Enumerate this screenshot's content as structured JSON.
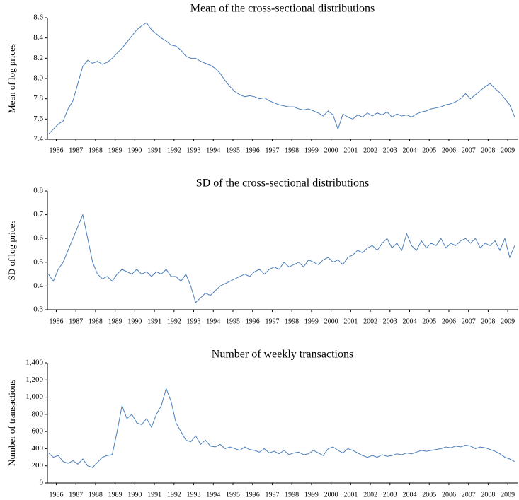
{
  "chart_data": [
    {
      "type": "line",
      "title": "Mean of the cross-sectional distributions",
      "y_label": "Mean of log prices",
      "color": "#4a7ebb",
      "x": [
        1985.6,
        1985.85,
        1986.1,
        1986.35,
        1986.6,
        1986.85,
        1987.1,
        1987.35,
        1987.6,
        1987.85,
        1988.1,
        1988.35,
        1988.6,
        1988.85,
        1989.1,
        1989.35,
        1989.6,
        1989.85,
        1990.1,
        1990.35,
        1990.6,
        1990.85,
        1991.1,
        1991.35,
        1991.6,
        1991.85,
        1992.1,
        1992.35,
        1992.6,
        1992.85,
        1993.1,
        1993.35,
        1993.6,
        1993.85,
        1994.1,
        1994.35,
        1994.6,
        1994.85,
        1995.1,
        1995.35,
        1995.6,
        1995.85,
        1996.1,
        1996.35,
        1996.6,
        1996.85,
        1997.1,
        1997.35,
        1997.6,
        1997.85,
        1998.1,
        1998.35,
        1998.6,
        1998.85,
        1999.1,
        1999.35,
        1999.6,
        1999.85,
        2000.1,
        2000.35,
        2000.6,
        2000.85,
        2001.1,
        2001.35,
        2001.6,
        2001.85,
        2002.1,
        2002.35,
        2002.6,
        2002.85,
        2003.1,
        2003.35,
        2003.6,
        2003.85,
        2004.1,
        2004.35,
        2004.6,
        2004.85,
        2005.1,
        2005.35,
        2005.6,
        2005.85,
        2006.1,
        2006.35,
        2006.6,
        2006.85,
        2007.1,
        2007.35,
        2007.6,
        2007.85,
        2008.1,
        2008.35,
        2008.6,
        2008.85,
        2009.1,
        2009.35
      ],
      "values": [
        7.45,
        7.5,
        7.55,
        7.58,
        7.7,
        7.78,
        7.95,
        8.12,
        8.18,
        8.15,
        8.17,
        8.14,
        8.16,
        8.2,
        8.25,
        8.3,
        8.36,
        8.42,
        8.48,
        8.52,
        8.55,
        8.48,
        8.44,
        8.4,
        8.37,
        8.33,
        8.32,
        8.28,
        8.22,
        8.2,
        8.2,
        8.17,
        8.15,
        8.13,
        8.1,
        8.05,
        7.98,
        7.92,
        7.87,
        7.84,
        7.82,
        7.83,
        7.82,
        7.8,
        7.81,
        7.78,
        7.76,
        7.74,
        7.73,
        7.72,
        7.72,
        7.7,
        7.69,
        7.7,
        7.68,
        7.66,
        7.63,
        7.68,
        7.64,
        7.5,
        7.65,
        7.62,
        7.6,
        7.64,
        7.62,
        7.66,
        7.63,
        7.66,
        7.64,
        7.67,
        7.62,
        7.65,
        7.63,
        7.64,
        7.62,
        7.65,
        7.67,
        7.68,
        7.7,
        7.71,
        7.72,
        7.74,
        7.75,
        7.77,
        7.8,
        7.85,
        7.8,
        7.84,
        7.88,
        7.92,
        7.95,
        7.9,
        7.86,
        7.8,
        7.74,
        7.62
      ],
      "xlim": [
        1985.55,
        2009.5
      ],
      "xticks": [
        1986,
        1987,
        1988,
        1989,
        1990,
        1991,
        1992,
        1993,
        1994,
        1995,
        1996,
        1997,
        1998,
        1999,
        2000,
        2001,
        2002,
        2003,
        2004,
        2005,
        2006,
        2007,
        2008,
        2009
      ],
      "ylim": [
        7.4,
        8.6
      ],
      "yticks": [
        7.4,
        7.6,
        7.8,
        {
          "value": 8,
          "label": "8.0"
        },
        8.2,
        8.4,
        8.6
      ]
    },
    {
      "type": "line",
      "title": "SD of the cross-sectional distributions",
      "y_label": "SD of log prices",
      "color": "#4a7ebb",
      "x": [
        1985.6,
        1985.85,
        1986.1,
        1986.35,
        1986.6,
        1986.85,
        1987.1,
        1987.35,
        1987.6,
        1987.85,
        1988.1,
        1988.35,
        1988.6,
        1988.85,
        1989.1,
        1989.35,
        1989.6,
        1989.85,
        1990.1,
        1990.35,
        1990.6,
        1990.85,
        1991.1,
        1991.35,
        1991.6,
        1991.85,
        1992.1,
        1992.35,
        1992.6,
        1992.85,
        1993.1,
        1993.35,
        1993.6,
        1993.85,
        1994.1,
        1994.35,
        1994.6,
        1994.85,
        1995.1,
        1995.35,
        1995.6,
        1995.85,
        1996.1,
        1996.35,
        1996.6,
        1996.85,
        1997.1,
        1997.35,
        1997.6,
        1997.85,
        1998.1,
        1998.35,
        1998.6,
        1998.85,
        1999.1,
        1999.35,
        1999.6,
        1999.85,
        2000.1,
        2000.35,
        2000.6,
        2000.85,
        2001.1,
        2001.35,
        2001.6,
        2001.85,
        2002.1,
        2002.35,
        2002.6,
        2002.85,
        2003.1,
        2003.35,
        2003.6,
        2003.85,
        2004.1,
        2004.35,
        2004.6,
        2004.85,
        2005.1,
        2005.35,
        2005.6,
        2005.85,
        2006.1,
        2006.35,
        2006.6,
        2006.85,
        2007.1,
        2007.35,
        2007.6,
        2007.85,
        2008.1,
        2008.35,
        2008.6,
        2008.85,
        2009.1,
        2009.35
      ],
      "values": [
        0.45,
        0.42,
        0.47,
        0.5,
        0.55,
        0.6,
        0.65,
        0.7,
        0.6,
        0.5,
        0.45,
        0.43,
        0.44,
        0.42,
        0.45,
        0.47,
        0.46,
        0.45,
        0.47,
        0.45,
        0.46,
        0.44,
        0.46,
        0.45,
        0.47,
        0.44,
        0.44,
        0.42,
        0.45,
        0.4,
        0.33,
        0.35,
        0.37,
        0.36,
        0.38,
        0.4,
        0.41,
        0.42,
        0.43,
        0.44,
        0.45,
        0.44,
        0.46,
        0.47,
        0.45,
        0.47,
        0.48,
        0.47,
        0.5,
        0.48,
        0.49,
        0.5,
        0.48,
        0.51,
        0.5,
        0.49,
        0.51,
        0.52,
        0.5,
        0.51,
        0.49,
        0.52,
        0.53,
        0.55,
        0.54,
        0.56,
        0.57,
        0.55,
        0.58,
        0.6,
        0.56,
        0.58,
        0.55,
        0.62,
        0.57,
        0.55,
        0.59,
        0.56,
        0.58,
        0.57,
        0.6,
        0.56,
        0.58,
        0.57,
        0.59,
        0.6,
        0.58,
        0.6,
        0.56,
        0.58,
        0.57,
        0.59,
        0.55,
        0.6,
        0.52,
        0.57
      ],
      "xlim": [
        1985.55,
        2009.5
      ],
      "xticks": [
        1986,
        1987,
        1988,
        1989,
        1990,
        1991,
        1992,
        1993,
        1994,
        1995,
        1996,
        1997,
        1998,
        1999,
        2000,
        2001,
        2002,
        2003,
        2004,
        2005,
        2006,
        2007,
        2008,
        2009
      ],
      "ylim": [
        0.3,
        0.8
      ],
      "yticks": [
        0.3,
        0.4,
        0.5,
        0.6,
        0.7,
        0.8
      ]
    },
    {
      "type": "line",
      "title": "Number of weekly transactions",
      "y_label": "Number of transactions",
      "color": "#4a7ebb",
      "x": [
        1985.6,
        1985.85,
        1986.1,
        1986.35,
        1986.6,
        1986.85,
        1987.1,
        1987.35,
        1987.6,
        1987.85,
        1988.1,
        1988.35,
        1988.6,
        1988.85,
        1989.1,
        1989.35,
        1989.6,
        1989.85,
        1990.1,
        1990.35,
        1990.6,
        1990.85,
        1991.1,
        1991.35,
        1991.6,
        1991.85,
        1992.1,
        1992.35,
        1992.6,
        1992.85,
        1993.1,
        1993.35,
        1993.6,
        1993.85,
        1994.1,
        1994.35,
        1994.6,
        1994.85,
        1995.1,
        1995.35,
        1995.6,
        1995.85,
        1996.1,
        1996.35,
        1996.6,
        1996.85,
        1997.1,
        1997.35,
        1997.6,
        1997.85,
        1998.1,
        1998.35,
        1998.6,
        1998.85,
        1999.1,
        1999.35,
        1999.6,
        1999.85,
        2000.1,
        2000.35,
        2000.6,
        2000.85,
        2001.1,
        2001.35,
        2001.6,
        2001.85,
        2002.1,
        2002.35,
        2002.6,
        2002.85,
        2003.1,
        2003.35,
        2003.6,
        2003.85,
        2004.1,
        2004.35,
        2004.6,
        2004.85,
        2005.1,
        2005.35,
        2005.6,
        2005.85,
        2006.1,
        2006.35,
        2006.6,
        2006.85,
        2007.1,
        2007.35,
        2007.6,
        2007.85,
        2008.1,
        2008.35,
        2008.6,
        2008.85,
        2009.1,
        2009.35
      ],
      "values": [
        350,
        300,
        320,
        250,
        230,
        260,
        220,
        280,
        200,
        180,
        240,
        300,
        320,
        330,
        600,
        900,
        750,
        800,
        700,
        680,
        750,
        650,
        800,
        900,
        1100,
        950,
        700,
        600,
        500,
        480,
        550,
        450,
        500,
        430,
        420,
        450,
        400,
        420,
        400,
        380,
        420,
        390,
        380,
        360,
        400,
        350,
        370,
        340,
        380,
        330,
        350,
        360,
        330,
        340,
        380,
        350,
        320,
        400,
        420,
        380,
        350,
        400,
        380,
        350,
        320,
        300,
        320,
        300,
        330,
        310,
        320,
        340,
        330,
        350,
        340,
        360,
        380,
        370,
        380,
        390,
        400,
        420,
        410,
        430,
        420,
        440,
        430,
        400,
        420,
        410,
        390,
        370,
        340,
        300,
        280,
        250
      ],
      "xlim": [
        1985.55,
        2009.5
      ],
      "xticks": [
        1986,
        1987,
        1988,
        1989,
        1990,
        1991,
        1992,
        1993,
        1994,
        1995,
        1996,
        1997,
        1998,
        1999,
        2000,
        2001,
        2002,
        2003,
        2004,
        2005,
        2006,
        2007,
        2008,
        2009
      ],
      "ylim": [
        0,
        1400
      ],
      "yticks": [
        0,
        200,
        400,
        600,
        800,
        {
          "value": 1000,
          "label": "1,000"
        },
        {
          "value": 1200,
          "label": "1,200"
        },
        {
          "value": 1400,
          "label": "1,400"
        }
      ]
    }
  ]
}
